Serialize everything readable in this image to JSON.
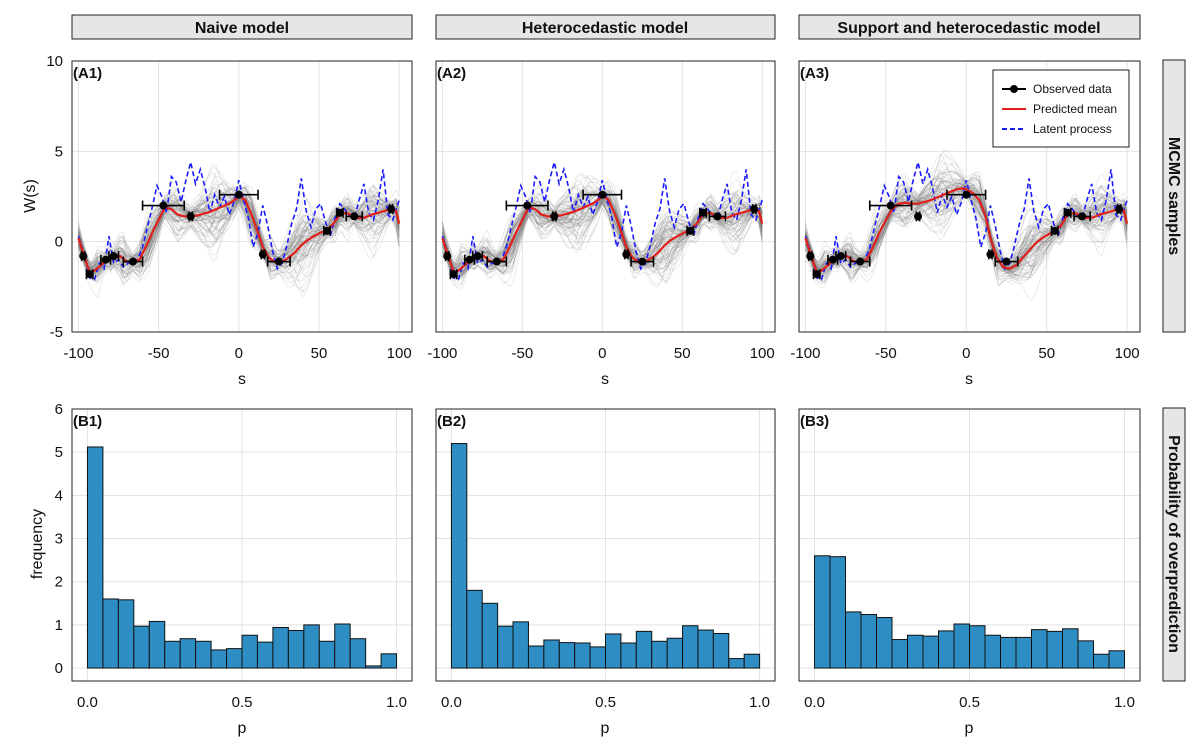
{
  "figure": {
    "columns": [
      "Naive model",
      "Heterocedastic model",
      "Support and heterocedastic model"
    ],
    "rows": [
      "MCMC samples",
      "Probability of overprediction"
    ]
  },
  "chart_data": [
    {
      "type": "line",
      "row": 0,
      "panels": [
        "(A1)",
        "(A2)",
        "(A3)"
      ],
      "xlabel": "s",
      "ylabel": "W(s)",
      "xlim": [
        -104,
        108
      ],
      "ylim": [
        -5,
        10
      ],
      "xticks": [
        -100,
        -50,
        0,
        50,
        100
      ],
      "xtick_labels": [
        "-100",
        "-50",
        "0",
        "50",
        "100"
      ],
      "yticks": [
        -5,
        0,
        5,
        10
      ],
      "ytick_labels": [
        "-5",
        "0",
        "5",
        "10"
      ],
      "legend": {
        "panel": 2,
        "position": "top-right",
        "entries": [
          "Observed data",
          "Predicted mean",
          "Latent process"
        ]
      },
      "observed": [
        {
          "x": -97,
          "y": -0.8,
          "xerr": 1
        },
        {
          "x": -93,
          "y": -1.8,
          "xerr": 2
        },
        {
          "x": -83,
          "y": -1.0,
          "xerr": 3
        },
        {
          "x": -78,
          "y": -0.8,
          "xerr": 3
        },
        {
          "x": -66,
          "y": -1.1,
          "xerr": 6
        },
        {
          "x": -47,
          "y": 2.0,
          "xerr": 13
        },
        {
          "x": -30,
          "y": 1.4,
          "xerr": 1
        },
        {
          "x": 0,
          "y": 2.6,
          "xerr": 12
        },
        {
          "x": 15,
          "y": -0.7,
          "xerr": 1
        },
        {
          "x": 25,
          "y": -1.1,
          "xerr": 7
        },
        {
          "x": 55,
          "y": 0.6,
          "xerr": 2
        },
        {
          "x": 63,
          "y": 1.6,
          "xerr": 2
        },
        {
          "x": 72,
          "y": 1.4,
          "xerr": 5
        },
        {
          "x": 95,
          "y": 1.8,
          "xerr": 1
        }
      ],
      "latent_process": {
        "x": [
          -100,
          -96,
          -93,
          -90,
          -87,
          -84,
          -81,
          -78,
          -75,
          -72,
          -69,
          -66,
          -63,
          -60,
          -57,
          -54,
          -51,
          -48,
          -45,
          -42,
          -39,
          -36,
          -33,
          -30,
          -27,
          -24,
          -21,
          -18,
          -15,
          -12,
          -9,
          -6,
          -3,
          0,
          3,
          6,
          9,
          12,
          15,
          18,
          21,
          24,
          27,
          30,
          33,
          36,
          39,
          42,
          45,
          48,
          51,
          54,
          57,
          60,
          63,
          66,
          69,
          72,
          75,
          78,
          81,
          84,
          87,
          90,
          93,
          96,
          100
        ],
        "y": [
          0.3,
          -0.8,
          -2.0,
          -2.1,
          -1.2,
          -1.5,
          0.3,
          -1.2,
          -1.0,
          -1.4,
          -1.2,
          -1.1,
          -1.0,
          -0.3,
          0.8,
          1.9,
          3.1,
          2.5,
          1.6,
          3.6,
          3.3,
          2.2,
          3.4,
          4.4,
          3.2,
          4.0,
          3.0,
          1.6,
          2.6,
          1.9,
          2.5,
          1.5,
          2.2,
          3.4,
          2.3,
          1.3,
          -0.3,
          0.5,
          2.0,
          0.9,
          -0.5,
          -1.5,
          -1.2,
          -0.2,
          1.0,
          1.8,
          3.5,
          1.7,
          0.8,
          1.8,
          2.1,
          1.1,
          0.3,
          1.3,
          2.1,
          1.8,
          1.4,
          1.3,
          2.3,
          3.2,
          1.6,
          1.2,
          2.3,
          4.0,
          1.5,
          1.2,
          2.3
        ]
      },
      "predicted_mean": {
        "x": [
          -100,
          -96,
          -93,
          -90,
          -86,
          -82,
          -78,
          -74,
          -70,
          -66,
          -62,
          -58,
          -54,
          -50,
          -46,
          -42,
          -38,
          -34,
          -30,
          -26,
          -22,
          -18,
          -14,
          -10,
          -6,
          -2,
          0,
          4,
          8,
          12,
          15,
          19,
          23,
          27,
          31,
          35,
          39,
          43,
          47,
          51,
          55,
          59,
          63,
          67,
          71,
          75,
          79,
          83,
          87,
          91,
          95,
          98,
          100
        ],
        "y": [
          0.2,
          -0.9,
          -1.7,
          -1.6,
          -1.3,
          -1.0,
          -0.9,
          -0.8,
          -1.1,
          -1.1,
          -1.0,
          -0.3,
          0.5,
          1.2,
          1.9,
          1.8,
          1.5,
          1.4,
          1.4,
          1.45,
          1.55,
          1.65,
          1.8,
          1.95,
          2.1,
          2.35,
          2.55,
          2.3,
          1.5,
          0.5,
          -0.3,
          -0.9,
          -1.15,
          -1.1,
          -0.9,
          -0.6,
          -0.2,
          0.1,
          0.3,
          0.5,
          0.65,
          1.0,
          1.5,
          1.6,
          1.45,
          1.3,
          1.35,
          1.5,
          1.6,
          1.7,
          1.85,
          1.7,
          1.0
        ]
      },
      "predicted_mean_support": {
        "x": [
          -100,
          -96,
          -93,
          -90,
          -86,
          -82,
          -78,
          -74,
          -70,
          -66,
          -62,
          -58,
          -54,
          -50,
          -46,
          -42,
          -38,
          -34,
          -30,
          -26,
          -22,
          -18,
          -14,
          -10,
          -6,
          -2,
          0,
          4,
          8,
          12,
          15,
          19,
          23,
          27,
          31,
          35,
          39,
          43,
          47,
          51,
          55,
          59,
          63,
          67,
          71,
          75,
          79,
          83,
          87,
          91,
          95,
          98,
          100
        ],
        "y": [
          0.2,
          -0.9,
          -1.7,
          -1.6,
          -1.3,
          -1.0,
          -0.9,
          -0.8,
          -1.1,
          -1.1,
          -1.0,
          -0.3,
          0.5,
          1.2,
          1.8,
          2.1,
          2.15,
          2.1,
          2.1,
          2.2,
          2.3,
          2.45,
          2.6,
          2.75,
          2.9,
          2.95,
          2.9,
          2.7,
          2.3,
          1.4,
          0.2,
          -0.9,
          -1.4,
          -1.5,
          -1.3,
          -0.9,
          -0.5,
          -0.1,
          0.2,
          0.4,
          0.6,
          0.9,
          1.5,
          1.6,
          1.45,
          1.3,
          1.35,
          1.5,
          1.6,
          1.7,
          1.85,
          1.7,
          1.0
        ]
      }
    },
    {
      "type": "bar",
      "row": 1,
      "panels": [
        "(B1)",
        "(B2)",
        "(B3)"
      ],
      "xlabel": "p",
      "ylabel": "frequency",
      "xlim": [
        -0.05,
        1.05
      ],
      "ylim": [
        -0.3,
        6
      ],
      "xticks": [
        0,
        0.5,
        1
      ],
      "xtick_labels": [
        "0.0",
        "0.5",
        "1.0"
      ],
      "yticks": [
        0,
        1,
        2,
        3,
        4,
        5,
        6
      ],
      "ytick_labels": [
        "0",
        "1",
        "2",
        "3",
        "4",
        "5",
        "6"
      ],
      "bin_edges": [
        0,
        0.05,
        0.1,
        0.15,
        0.2,
        0.25,
        0.3,
        0.35,
        0.4,
        0.45,
        0.5,
        0.55,
        0.6,
        0.65,
        0.7,
        0.75,
        0.8,
        0.85,
        0.9,
        0.95,
        1.0
      ],
      "series": [
        {
          "name": "Naive model",
          "values": [
            5.12,
            1.6,
            1.58,
            0.97,
            1.08,
            0.62,
            0.68,
            0.62,
            0.42,
            0.45,
            0.76,
            0.6,
            0.94,
            0.87,
            1.0,
            0.62,
            1.02,
            0.68,
            0.05,
            0.33
          ]
        },
        {
          "name": "Heterocedastic model",
          "values": [
            5.2,
            1.8,
            1.5,
            0.97,
            1.07,
            0.51,
            0.65,
            0.59,
            0.58,
            0.49,
            0.79,
            0.58,
            0.85,
            0.62,
            0.69,
            0.98,
            0.88,
            0.8,
            0.22,
            0.32
          ]
        },
        {
          "name": "Support and heterocedastic model",
          "values": [
            2.6,
            2.58,
            1.3,
            1.24,
            1.17,
            0.66,
            0.76,
            0.74,
            0.86,
            1.02,
            0.98,
            0.76,
            0.71,
            0.71,
            0.89,
            0.85,
            0.91,
            0.63,
            0.32,
            0.4
          ]
        }
      ]
    }
  ]
}
